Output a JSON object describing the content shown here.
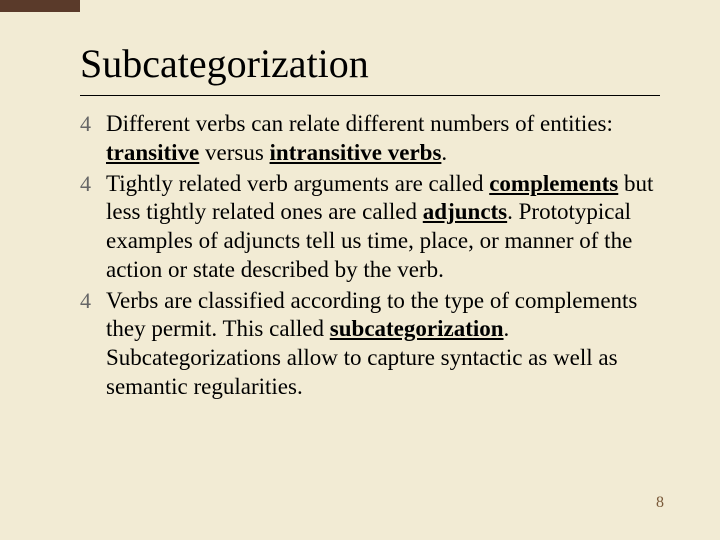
{
  "colors": {
    "background": "#f2ebd4",
    "stripe": "#5a3a2a",
    "text": "#000000",
    "page_num": "#7a5a3a",
    "bullet_glyph": "#666666",
    "divider": "#000000"
  },
  "typography": {
    "title_fontsize": 40,
    "body_fontsize": 23,
    "page_num_fontsize": 16,
    "font_family": "Times New Roman"
  },
  "title": "Subcategorization",
  "bullets": [
    {
      "pre1": "Different verbs can relate different numbers of entities: ",
      "kw1": "transitive",
      "mid1": " versus ",
      "kw2": "intransitive verbs",
      "post1": "."
    },
    {
      "pre1": "Tightly related verb arguments are called ",
      "kw1": "complements",
      "mid1": " but less tightly related ones are called ",
      "kw2": "adjuncts",
      "post1": ". Prototypical examples of adjuncts tell us time, place, or manner of the action or state described by the verb."
    },
    {
      "pre1": "Verbs are classified according to the type of complements they permit. This called ",
      "kw1": "subcategorization",
      "post1": ". Subcategorizations allow to capture syntactic as well as semantic regularities."
    }
  ],
  "page_number": "8"
}
